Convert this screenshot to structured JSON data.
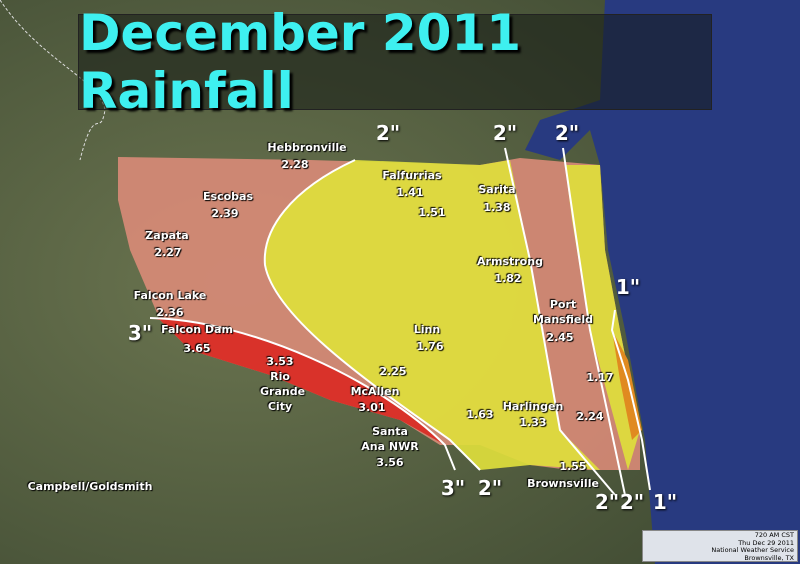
{
  "title": "December 2011 Rainfall",
  "stations": [
    {
      "name": "Hebbronville",
      "rainfall": 2.28
    },
    {
      "name": "Escobas",
      "rainfall": 2.39
    },
    {
      "name": "Zapata",
      "rainfall": 2.27
    },
    {
      "name": "Falcon Lake",
      "rainfall": 2.36
    },
    {
      "name": "Falcon Dam",
      "rainfall": 3.65
    },
    {
      "name": "Rio Grande City",
      "rainfall": 3.53
    },
    {
      "rainfall": 2.25
    },
    {
      "name": "McAllen",
      "rainfall": 3.01
    },
    {
      "name": "Santa Ana NWR",
      "rainfall": 3.56
    },
    {
      "name": "Falfurrias",
      "rainfall": 1.41
    },
    {
      "rainfall": 1.51
    },
    {
      "name": "Sarita",
      "rainfall": 1.38
    },
    {
      "name": "Armstrong",
      "rainfall": 1.82
    },
    {
      "name": "Port Mansfield",
      "rainfall": 2.45
    },
    {
      "name": "Linn",
      "rainfall": 1.76
    },
    {
      "rainfall": 1.63
    },
    {
      "name": "Harlingen",
      "rainfall": 1.33
    },
    {
      "rainfall": 2.24
    },
    {
      "rainfall": 1.17
    },
    {
      "name": "Brownsville",
      "rainfall": 1.55
    },
    {
      "name": "Campbell/Goldsmith"
    }
  ],
  "contour_labels": [
    "2\"",
    "2\"",
    "2\"",
    "1\"",
    "3\"",
    "3\"",
    "2\"",
    "2\"",
    "2\"",
    "1\""
  ],
  "footer": {
    "time": "720 AM CST",
    "date": "Thu Dec 29 2011",
    "office": "National Weather Service",
    "location": "Brownsville, TX"
  }
}
